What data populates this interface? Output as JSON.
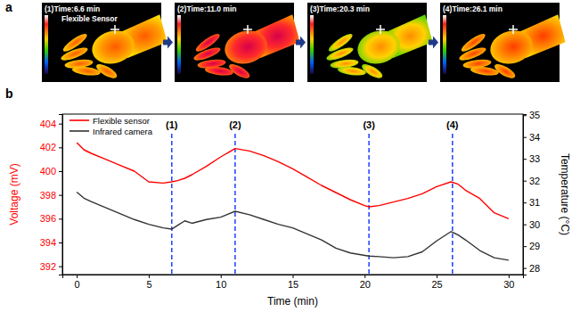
{
  "panel_labels": [
    "a",
    "b"
  ],
  "thermal_images": [
    {
      "title": "(1)Time:6.6 min",
      "annotation": "Flexible Sensor"
    },
    {
      "title": "(2)Time:11.0 min"
    },
    {
      "title": "(3)Time:20.3 min"
    },
    {
      "title": "(4)Time:26.1 min"
    }
  ],
  "chart_data": {
    "type": "line",
    "x_label": "Time (min)",
    "y_label": "Voltage (mV)",
    "y2_label": "Temperature (°C)",
    "x": [
      0,
      0.5,
      1,
      2,
      3,
      4,
      5,
      6,
      6.6,
      7,
      7.5,
      8,
      9,
      10,
      11,
      12,
      13,
      14,
      15,
      16,
      17,
      18,
      19,
      20,
      20.3,
      21,
      22,
      23,
      24,
      25,
      26,
      26.5,
      27,
      28,
      29,
      30
    ],
    "series": [
      {
        "name": "Flexible sensor",
        "color": "#ff0000",
        "values": [
          402.4,
          401.8,
          401.5,
          401.0,
          400.5,
          400.0,
          399.1,
          399.0,
          399.1,
          399.2,
          399.4,
          399.7,
          400.4,
          401.2,
          401.9,
          401.7,
          401.3,
          400.8,
          400.2,
          399.5,
          398.8,
          398.2,
          397.6,
          397.1,
          397.0,
          397.1,
          397.4,
          397.7,
          398.1,
          398.7,
          399.1,
          398.9,
          398.4,
          397.7,
          396.5,
          396.0
        ]
      },
      {
        "name": "Infrared camera",
        "color": "#333333",
        "axis": "y2",
        "values": [
          31.48,
          31.2,
          31.04,
          30.77,
          30.49,
          30.22,
          30.0,
          29.84,
          29.78,
          29.95,
          30.16,
          30.05,
          30.22,
          30.33,
          30.6,
          30.44,
          30.22,
          30.0,
          29.84,
          29.56,
          29.29,
          28.91,
          28.69,
          28.58,
          28.55,
          28.52,
          28.47,
          28.52,
          28.74,
          29.24,
          29.67,
          29.51,
          29.29,
          28.8,
          28.47,
          28.36
        ]
      }
    ],
    "xlim": [
      -1,
      31
    ],
    "xticks": [
      0,
      5,
      10,
      15,
      20,
      25,
      30
    ],
    "ylim": [
      391.3,
      404.8
    ],
    "yticks": [
      392,
      394,
      396,
      398,
      400,
      402,
      404
    ],
    "y2lim": [
      27.7,
      35.05
    ],
    "y2ticks": [
      28,
      29,
      30,
      31,
      32,
      33,
      34,
      35
    ],
    "annotations": [
      {
        "x": 6.6,
        "label": "(1)"
      },
      {
        "x": 11.0,
        "label": "(2)"
      },
      {
        "x": 20.3,
        "label": "(3)"
      },
      {
        "x": 26.1,
        "label": "(4)"
      }
    ],
    "grid": false,
    "legend": "upper left"
  }
}
